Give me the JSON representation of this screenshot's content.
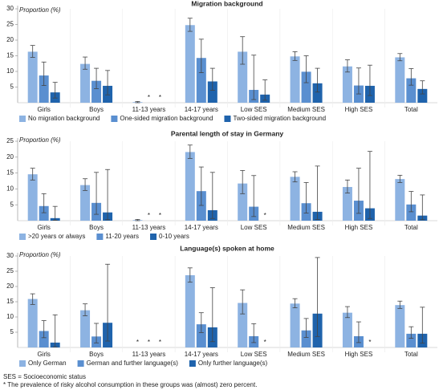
{
  "chart_data": [
    {
      "type": "bar",
      "title": "Migration background",
      "y_label": "Proportion (%)",
      "categories": [
        "Girls",
        "Boys",
        "11-13 years",
        "14-17 years",
        "Low SES",
        "Medium SES",
        "High SES",
        "Total"
      ],
      "ylim": [
        0,
        30
      ],
      "yticks": [
        5,
        10,
        15,
        20,
        25,
        30
      ],
      "error_bars": true,
      "series": [
        {
          "name": "No migration background",
          "color": "#8db3e2",
          "values": [
            16.3,
            12.4,
            0.2,
            24.8,
            16.3,
            14.8,
            11.6,
            14.5
          ],
          "lower": [
            14.5,
            10.7,
            0,
            22.8,
            12.3,
            13.5,
            9.8,
            13.4
          ],
          "upper": [
            18.3,
            14.6,
            0.4,
            27,
            21.1,
            16.3,
            13.7,
            15.7
          ],
          "value_labels": [
            null,
            null,
            null,
            null,
            null,
            null,
            null,
            null
          ]
        },
        {
          "name": "One-sided migration background",
          "color": "#5a8fd0",
          "values": [
            8.7,
            7.0,
            null,
            14.3,
            4.1,
            9.9,
            5.5,
            7.8
          ],
          "lower": [
            5.5,
            4.5,
            null,
            9.6,
            1,
            6.4,
            2.8,
            5.6
          ],
          "upper": [
            13,
            11,
            null,
            20.3,
            15.2,
            15,
            11.1,
            10.9
          ],
          "value_labels": [
            null,
            null,
            "*",
            null,
            null,
            null,
            null,
            null
          ]
        },
        {
          "name": "Two-sided migration background",
          "color": "#1f63ac",
          "values": [
            3.3,
            5.4,
            null,
            6.8,
            2.6,
            6.2,
            5.4,
            4.4
          ],
          "lower": [
            1.5,
            2.5,
            null,
            4,
            0.8,
            3.4,
            2.3,
            2.8
          ],
          "upper": [
            6.5,
            10.3,
            null,
            11,
            7.3,
            11,
            12,
            7
          ],
          "value_labels": [
            null,
            null,
            "*",
            null,
            null,
            null,
            null,
            null
          ]
        }
      ]
    },
    {
      "type": "bar",
      "title": "Parental length of stay in Germany",
      "y_label": "Proportion (%)",
      "categories": [
        "Girls",
        "Boys",
        "11-13 years",
        "14-17 years",
        "Low SES",
        "Medium SES",
        "High SES",
        "Total"
      ],
      "ylim": [
        0,
        25
      ],
      "yticks": [
        5,
        10,
        15,
        20,
        25
      ],
      "error_bars": true,
      "series": [
        {
          "name": ">20 years or always",
          "color": "#8db3e2",
          "values": [
            14.6,
            11.2,
            0.2,
            21.6,
            11.7,
            13.8,
            10.6,
            13.1
          ],
          "lower": [
            12.8,
            9.5,
            0,
            19.6,
            8.5,
            12.2,
            8.7,
            12
          ],
          "upper": [
            16.5,
            13.2,
            0.4,
            23.8,
            15.8,
            15.4,
            12.8,
            14.3
          ],
          "value_labels": [
            null,
            null,
            null,
            null,
            null,
            null,
            null,
            null
          ]
        },
        {
          "name": "11-20 years",
          "color": "#5a8fd0",
          "values": [
            4.6,
            5.6,
            null,
            9.3,
            4.4,
            5.5,
            6.3,
            5.1
          ],
          "lower": [
            2.5,
            2,
            null,
            4.8,
            1.3,
            2.4,
            2.3,
            2.8
          ],
          "upper": [
            8.5,
            15.2,
            null,
            16.9,
            14.2,
            12,
            16.5,
            9.2
          ],
          "value_labels": [
            null,
            null,
            "*",
            null,
            null,
            null,
            null,
            null
          ]
        },
        {
          "name": "0-10 years",
          "color": "#1f63ac",
          "values": [
            0.8,
            2.6,
            null,
            3.3,
            null,
            2.8,
            3.9,
            1.6
          ],
          "lower": [
            0.1,
            0.3,
            null,
            0.7,
            null,
            0.4,
            0.7,
            0.3
          ],
          "upper": [
            4.5,
            16.1,
            null,
            15.2,
            null,
            17.2,
            21.8,
            8.1
          ],
          "value_labels": [
            null,
            null,
            "*",
            null,
            "*",
            null,
            null,
            null
          ]
        }
      ]
    },
    {
      "type": "bar",
      "title": "Language(s) spoken at home",
      "y_label": "Proportion (%)",
      "categories": [
        "Girls",
        "Boys",
        "11-13 years",
        "14-17 years",
        "Low SES",
        "Medium SES",
        "High SES",
        "Total"
      ],
      "ylim": [
        0,
        30
      ],
      "yticks": [
        5,
        10,
        15,
        20,
        25,
        30
      ],
      "error_bars": true,
      "series": [
        {
          "name": "Only German",
          "color": "#8db3e2",
          "values": [
            15.9,
            12.2,
            null,
            23.7,
            14.6,
            14.4,
            11.4,
            13.9
          ],
          "lower": [
            14.1,
            10.4,
            null,
            21.4,
            11,
            13,
            9.8,
            12.8
          ],
          "upper": [
            17.6,
            14.3,
            null,
            26.1,
            18.9,
            16,
            13.4,
            15.2
          ],
          "value_labels": [
            null,
            null,
            "*",
            null,
            null,
            null,
            null,
            null
          ]
        },
        {
          "name": "German and further language(s)",
          "color": "#5a8fd0",
          "values": [
            5.4,
            3.6,
            null,
            7.6,
            3.7,
            5.6,
            3.7,
            4.5
          ],
          "lower": [
            3.2,
            1.5,
            null,
            4.9,
            1.6,
            3.3,
            1.6,
            3
          ],
          "upper": [
            8.8,
            7.9,
            null,
            11.4,
            7.8,
            9.5,
            8.4,
            6.8
          ],
          "value_labels": [
            null,
            null,
            "*",
            null,
            null,
            null,
            null,
            null
          ]
        },
        {
          "name": "Only further language(s)",
          "color": "#1f63ac",
          "values": [
            1.6,
            8.1,
            null,
            6.6,
            null,
            11.1,
            null,
            4.5
          ],
          "lower": [
            0.2,
            2.1,
            null,
            1.9,
            null,
            3.6,
            null,
            1.4
          ],
          "upper": [
            10.7,
            27.3,
            null,
            19.6,
            null,
            29.5,
            null,
            13.2
          ],
          "value_labels": [
            null,
            null,
            "*",
            null,
            "*",
            null,
            "*",
            null
          ]
        }
      ]
    }
  ],
  "footnotes": [
    "SES = Socioeconomic status",
    "* The prevalence of risky alcohol consumption in these groups was (almost) zero percent."
  ]
}
